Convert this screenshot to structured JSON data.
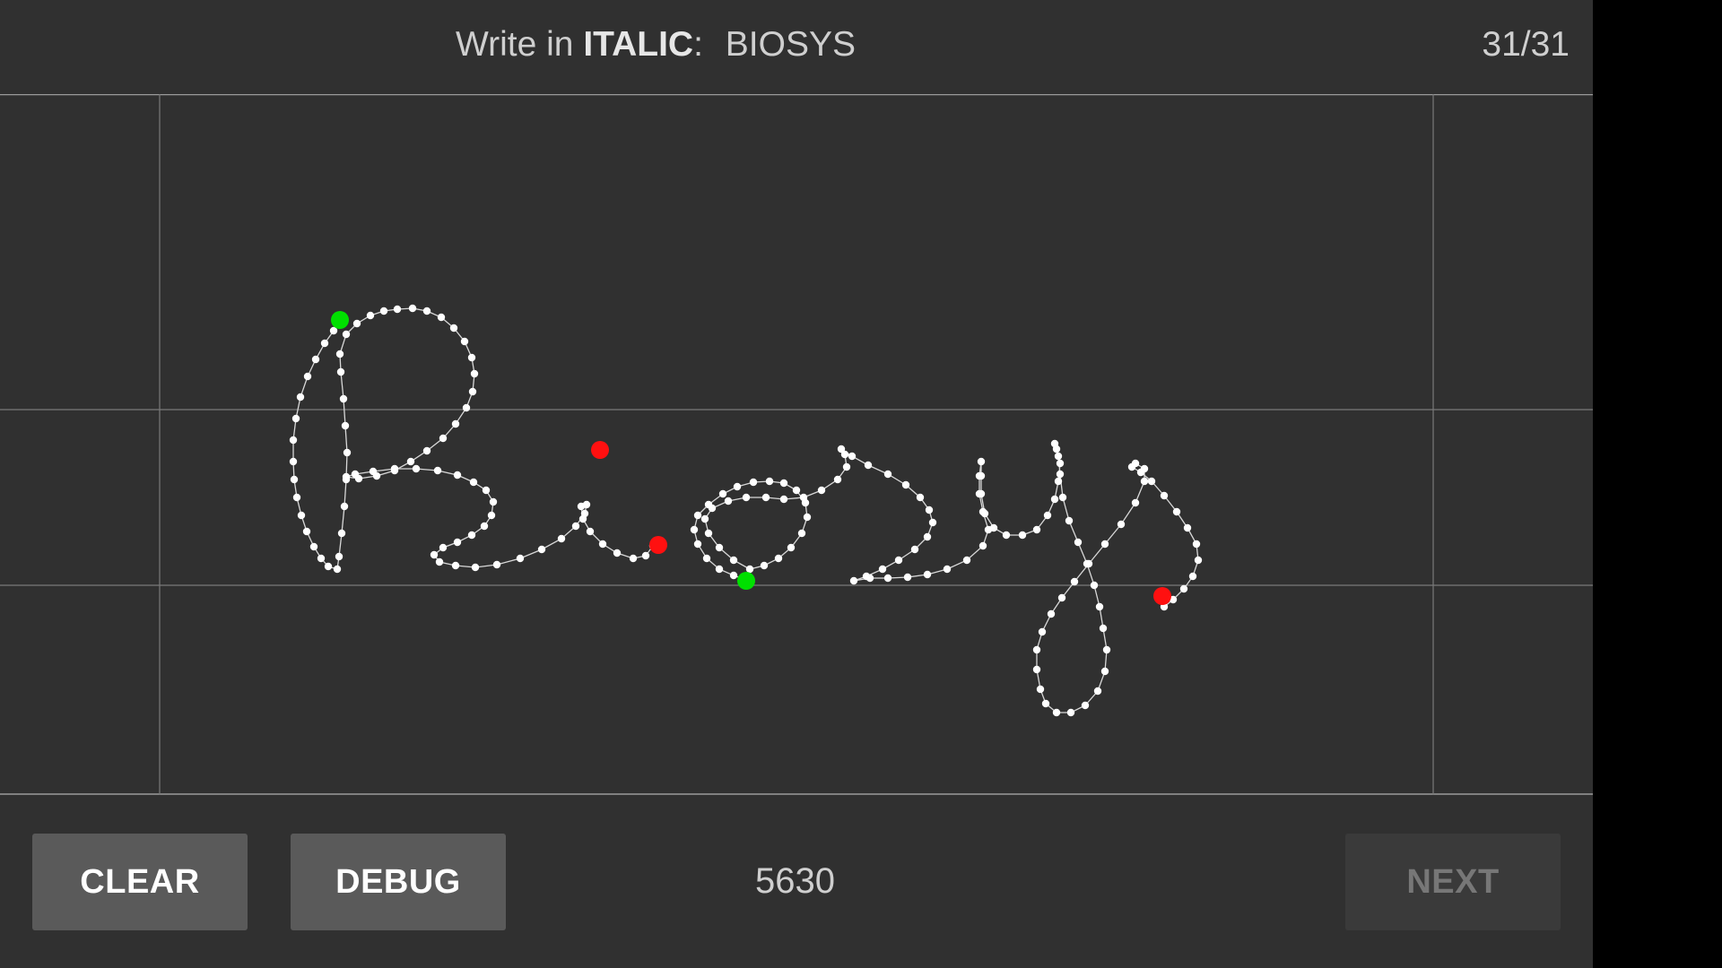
{
  "header": {
    "prompt_prefix": "Write in",
    "prompt_style": "ITALIC",
    "prompt_colon": ":",
    "prompt_word": "BIOSYS",
    "counter": "31/31"
  },
  "canvas": {
    "stroke_color": "#ffffff",
    "start_marker_color": "#00e000",
    "end_marker_color": "#ff1010",
    "guide_color": "#8a8a8a"
  },
  "footer": {
    "clear_label": "CLEAR",
    "debug_label": "DEBUG",
    "point_count": "5630",
    "next_label": "NEXT",
    "next_enabled": false
  }
}
